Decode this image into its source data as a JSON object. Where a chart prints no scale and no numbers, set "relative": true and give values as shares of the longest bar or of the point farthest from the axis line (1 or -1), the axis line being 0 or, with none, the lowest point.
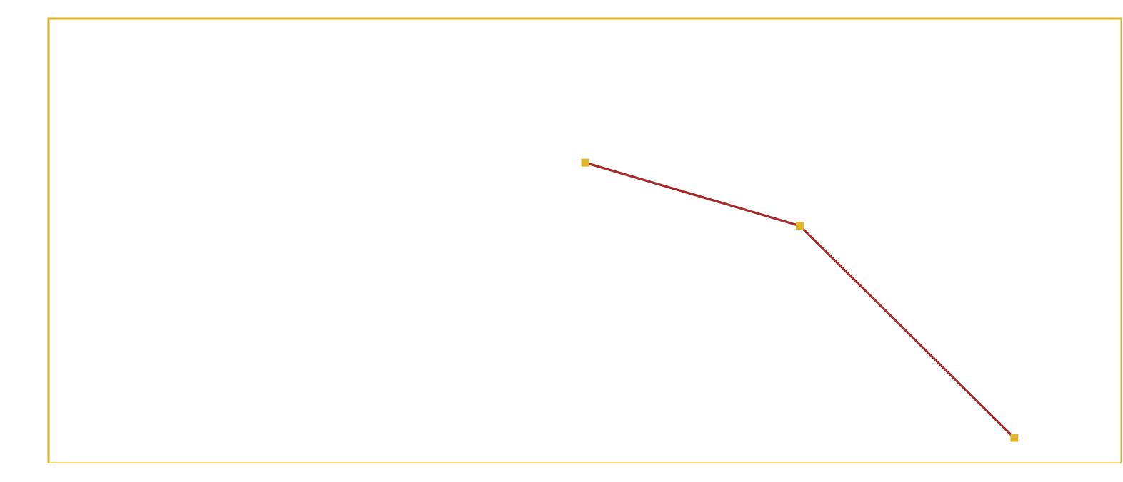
{
  "chart_data": {
    "type": "line",
    "relative": true,
    "categories": [
      null,
      null,
      null,
      null,
      null
    ],
    "series": [
      {
        "color": "#a52a2a",
        "values": [
          null,
          null,
          1,
          0.79,
          0.085
        ]
      }
    ],
    "marker": "square",
    "line_style": "solid",
    "grid": false
  }
}
